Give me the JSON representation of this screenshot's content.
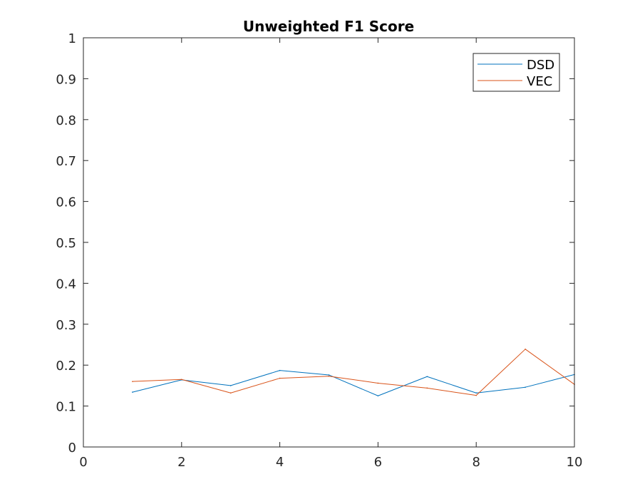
{
  "chart_data": {
    "type": "line",
    "title": "Unweighted F1 Score",
    "xlabel": "",
    "ylabel": "",
    "xlim": [
      0,
      10
    ],
    "ylim": [
      0,
      1
    ],
    "xticks": [
      0,
      2,
      4,
      6,
      8,
      10
    ],
    "xtick_labels": [
      "0",
      "2",
      "4",
      "6",
      "8",
      "10"
    ],
    "yticks": [
      0,
      0.1,
      0.2,
      0.3,
      0.4,
      0.5,
      0.6,
      0.7,
      0.8,
      0.9,
      1
    ],
    "ytick_labels": [
      "0",
      "0.1",
      "0.2",
      "0.3",
      "0.4",
      "0.5",
      "0.6",
      "0.7",
      "0.8",
      "0.9",
      "1"
    ],
    "grid": false,
    "legend_position": "top-right",
    "x": [
      1,
      2,
      3,
      4,
      5,
      6,
      7,
      8,
      9,
      10
    ],
    "series": [
      {
        "name": "DSD",
        "color": "#0072BD",
        "values": [
          0.134,
          0.164,
          0.15,
          0.187,
          0.176,
          0.125,
          0.172,
          0.132,
          0.146,
          0.177
        ]
      },
      {
        "name": "VEC",
        "color": "#D95319",
        "values": [
          0.16,
          0.165,
          0.132,
          0.168,
          0.173,
          0.156,
          0.144,
          0.126,
          0.239,
          0.153
        ]
      }
    ]
  }
}
